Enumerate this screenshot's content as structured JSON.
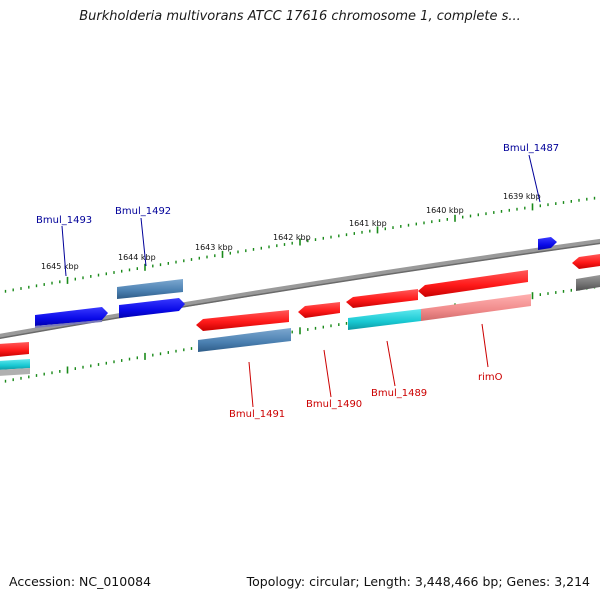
{
  "title": "Burkholderia multivorans ATCC 17616 chromosome 1, complete s...",
  "footer": {
    "accession": "Accession: NC_010084",
    "stats": "Topology: circular; Length: 3,448,466 bp; Genes: 3,214"
  },
  "colors": {
    "forward_gene": "#ff1a1a",
    "reverse_gene": "#1010e0",
    "rna_gene": "#20c8d0",
    "feature_steelblue": "#4a7fb0",
    "feature_pink": "#f08a8a",
    "feature_gray": "#707070",
    "backbone": "#808080",
    "ticks": "#1a8a1a",
    "label_blue": "#000099",
    "label_red": "#cc0000"
  },
  "scale_labels": [
    "1645 kbp",
    "1644 kbp",
    "1643 kbp",
    "1642 kbp",
    "1641 kbp",
    "1640 kbp",
    "1639 kbp"
  ],
  "gene_labels": {
    "outer": [
      "Bmul_1493",
      "Bmul_1492",
      "Bmul_1487"
    ],
    "inner": [
      "Bmul_1491",
      "Bmul_1490",
      "Bmul_1489",
      "rimO"
    ]
  }
}
